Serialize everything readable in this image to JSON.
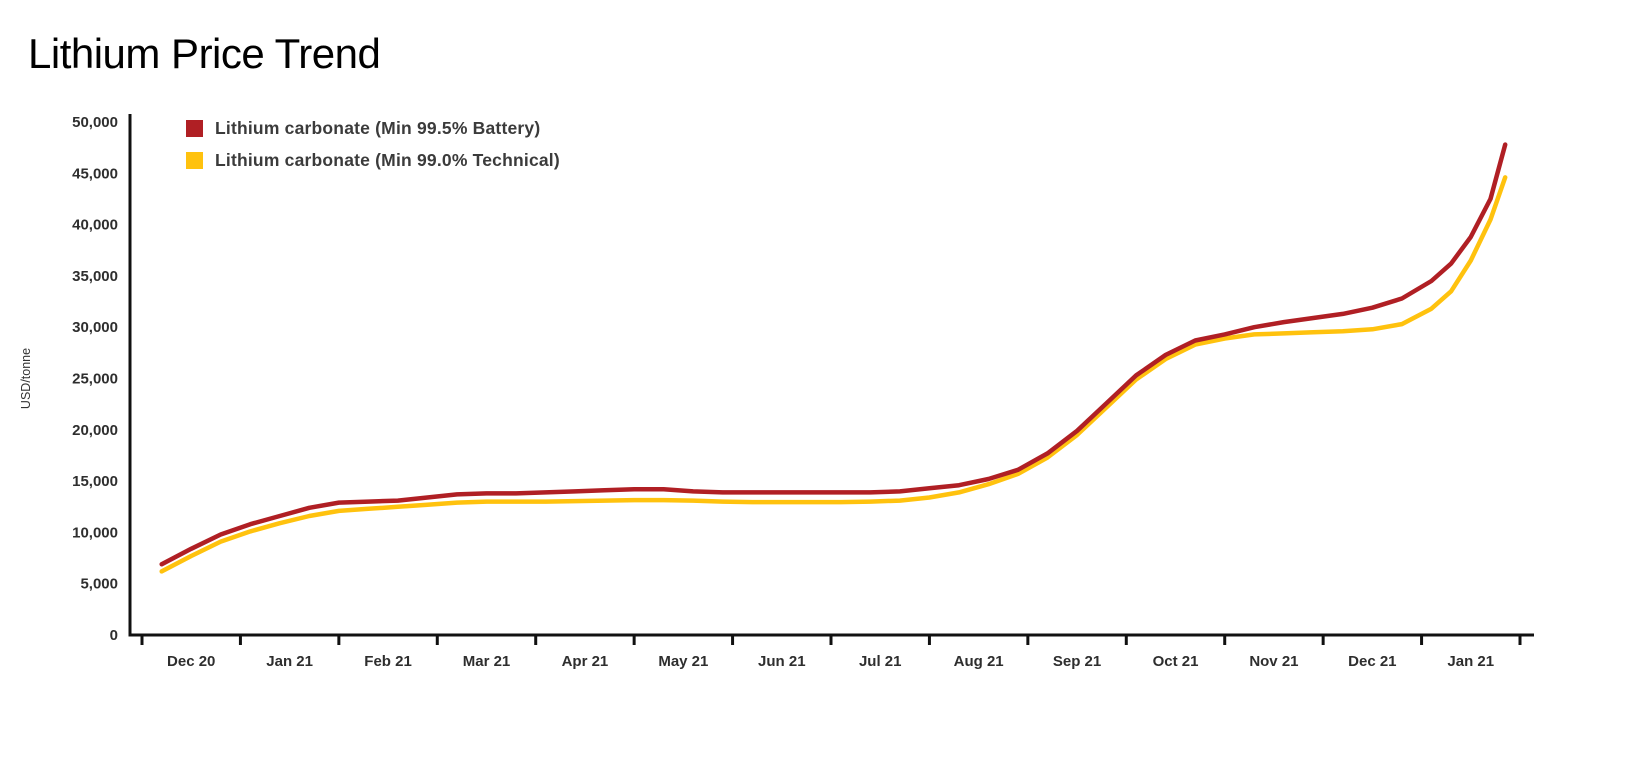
{
  "page": {
    "title": "Lithium Price Trend"
  },
  "chart_data": {
    "type": "line",
    "title": "Lithium Price Trend",
    "ylabel": "USD/tonne",
    "xlabel": "",
    "ylim": [
      0,
      50000
    ],
    "grid": false,
    "legend_position": "top-left",
    "axis_color": "#111111",
    "x_unit": "month segments; each category spans one segment of the x-axis",
    "x_categories": [
      "Dec 20",
      "Jan 21",
      "Feb 21",
      "Mar 21",
      "Apr 21",
      "May 21",
      "Jun 21",
      "Jul 21",
      "Aug 21",
      "Sep 21",
      "Oct 21",
      "Nov 21",
      "Dec 21",
      "Jan 21"
    ],
    "y_ticks": [
      {
        "value": 0,
        "label": "0"
      },
      {
        "value": 5000,
        "label": "5,000"
      },
      {
        "value": 10000,
        "label": "10,000"
      },
      {
        "value": 15000,
        "label": "15,000"
      },
      {
        "value": 20000,
        "label": "20,000"
      },
      {
        "value": 25000,
        "label": "25,000"
      },
      {
        "value": 30000,
        "label": "30,000"
      },
      {
        "value": 35000,
        "label": "35,000"
      },
      {
        "value": 40000,
        "label": "40,000"
      },
      {
        "value": 45000,
        "label": "45,000"
      },
      {
        "value": 50000,
        "label": "50,000"
      }
    ],
    "series": [
      {
        "id": "battery",
        "name": "Lithium carbonate (Min 99.5% Battery)",
        "color": "#B01F24",
        "x": [
          0.2,
          0.5,
          0.8,
          1.1,
          1.4,
          1.7,
          2.0,
          2.3,
          2.6,
          2.9,
          3.2,
          3.5,
          3.8,
          4.1,
          4.4,
          4.7,
          5.0,
          5.3,
          5.6,
          5.9,
          6.2,
          6.5,
          6.8,
          7.1,
          7.4,
          7.7,
          8.0,
          8.3,
          8.6,
          8.9,
          9.2,
          9.5,
          9.8,
          10.1,
          10.4,
          10.7,
          11.0,
          11.3,
          11.6,
          11.9,
          12.2,
          12.5,
          12.8,
          13.1,
          13.3,
          13.5,
          13.7,
          13.85
        ],
        "values": [
          6900,
          8400,
          9800,
          10800,
          11600,
          12400,
          12900,
          13000,
          13100,
          13400,
          13700,
          13800,
          13800,
          13900,
          14000,
          14100,
          14200,
          14200,
          14000,
          13900,
          13900,
          13900,
          13900,
          13900,
          13900,
          14000,
          14300,
          14600,
          15200,
          16100,
          17700,
          19900,
          22600,
          25300,
          27300,
          28700,
          29300,
          30000,
          30500,
          30900,
          31300,
          31900,
          32800,
          34500,
          36200,
          38800,
          42500,
          47800
        ]
      },
      {
        "id": "technical",
        "name": "Lithium carbonate (Min 99.0% Technical)",
        "color": "#FFC20E",
        "x": [
          0.2,
          0.5,
          0.8,
          1.1,
          1.4,
          1.7,
          2.0,
          2.3,
          2.6,
          2.9,
          3.2,
          3.5,
          3.8,
          4.1,
          4.4,
          4.7,
          5.0,
          5.3,
          5.6,
          5.9,
          6.2,
          6.5,
          6.8,
          7.1,
          7.4,
          7.7,
          8.0,
          8.3,
          8.6,
          8.9,
          9.2,
          9.5,
          9.8,
          10.1,
          10.4,
          10.7,
          11.0,
          11.3,
          11.6,
          11.9,
          12.2,
          12.5,
          12.8,
          13.1,
          13.3,
          13.5,
          13.7,
          13.85
        ],
        "values": [
          6200,
          7700,
          9100,
          10100,
          10900,
          11600,
          12100,
          12300,
          12500,
          12700,
          12900,
          13000,
          13000,
          13000,
          13050,
          13100,
          13150,
          13150,
          13100,
          13000,
          12950,
          12950,
          12950,
          12950,
          13000,
          13100,
          13400,
          13900,
          14700,
          15700,
          17300,
          19500,
          22200,
          24900,
          26900,
          28300,
          28900,
          29300,
          29400,
          29500,
          29600,
          29800,
          30300,
          31800,
          33500,
          36500,
          40500,
          44600
        ]
      }
    ]
  }
}
